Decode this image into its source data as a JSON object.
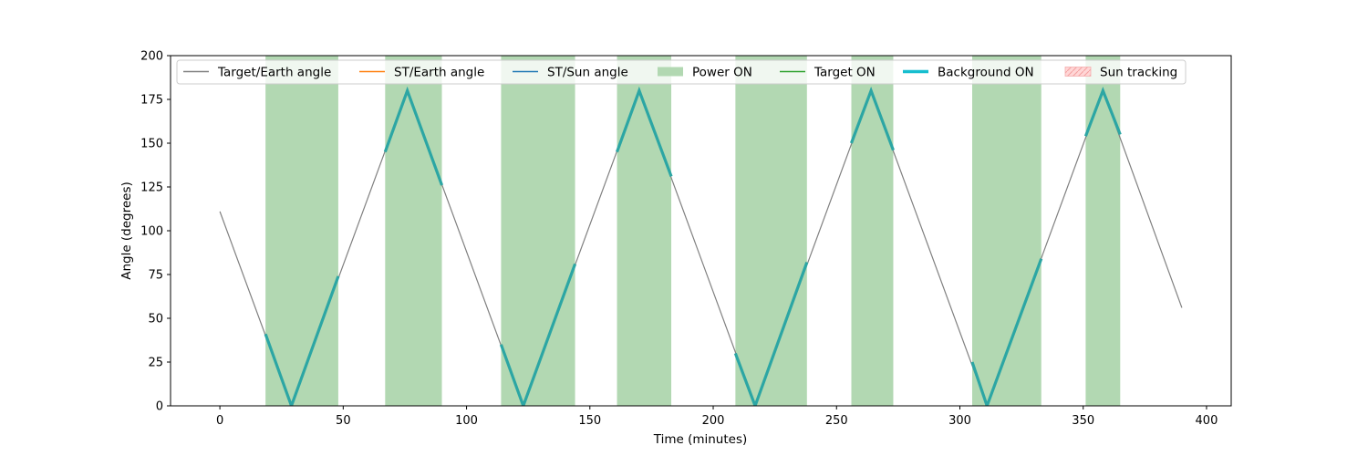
{
  "chart_data": {
    "type": "line",
    "xlabel": "Time (minutes)",
    "ylabel": "Angle (degrees)",
    "xlim": [
      -20,
      410
    ],
    "ylim": [
      0,
      200
    ],
    "xticks": [
      0,
      50,
      100,
      150,
      200,
      250,
      300,
      350,
      400
    ],
    "yticks": [
      0,
      25,
      50,
      75,
      100,
      125,
      150,
      175,
      200
    ],
    "grid": false,
    "legend_position": "top (single row)",
    "legend": [
      {
        "label": "Target/Earth angle",
        "kind": "line",
        "color": "#808080"
      },
      {
        "label": "ST/Earth angle",
        "kind": "line",
        "color": "#ff7f0e"
      },
      {
        "label": "ST/Sun angle",
        "kind": "line",
        "color": "#1f77b4"
      },
      {
        "label": "Power ON",
        "kind": "patch",
        "color": "#b2d8b2"
      },
      {
        "label": "Target ON",
        "kind": "line",
        "color": "#2ca02c"
      },
      {
        "label": "Background ON",
        "kind": "thickline",
        "color": "#17becf"
      },
      {
        "label": "Sun tracking",
        "kind": "hatchpatch",
        "color": "#ffd6d6"
      }
    ],
    "power_on_intervals": [
      [
        18.5,
        48
      ],
      [
        67,
        90
      ],
      [
        114,
        144
      ],
      [
        161,
        183
      ],
      [
        209,
        238
      ],
      [
        256,
        273
      ],
      [
        305,
        333
      ],
      [
        351,
        365
      ]
    ],
    "series": [
      {
        "name": "Target/Earth angle",
        "color": "#808080",
        "x": [
          0,
          29,
          76,
          123,
          170,
          217,
          264,
          311,
          358,
          390
        ],
        "y": [
          111,
          0,
          180,
          0,
          180,
          0,
          180,
          0,
          180,
          56
        ]
      },
      {
        "name": "Background ON",
        "color": "#2ca6a4",
        "segments": [
          {
            "x": [
              18.5,
              29,
              48
            ],
            "y": [
              41,
              0,
              74
            ]
          },
          {
            "x": [
              67,
              76,
              90
            ],
            "y": [
              145,
              180,
              126
            ]
          },
          {
            "x": [
              114,
              123,
              144
            ],
            "y": [
              35,
              0,
              81
            ]
          },
          {
            "x": [
              161,
              170,
              183
            ],
            "y": [
              145,
              180,
              131
            ]
          },
          {
            "x": [
              209,
              217,
              238
            ],
            "y": [
              30,
              0,
              82
            ]
          },
          {
            "x": [
              256,
              264,
              273
            ],
            "y": [
              150,
              180,
              146
            ]
          },
          {
            "x": [
              305,
              311,
              333
            ],
            "y": [
              25,
              0,
              84
            ]
          },
          {
            "x": [
              351,
              358,
              365
            ],
            "y": [
              154,
              180,
              155
            ]
          }
        ]
      }
    ]
  }
}
